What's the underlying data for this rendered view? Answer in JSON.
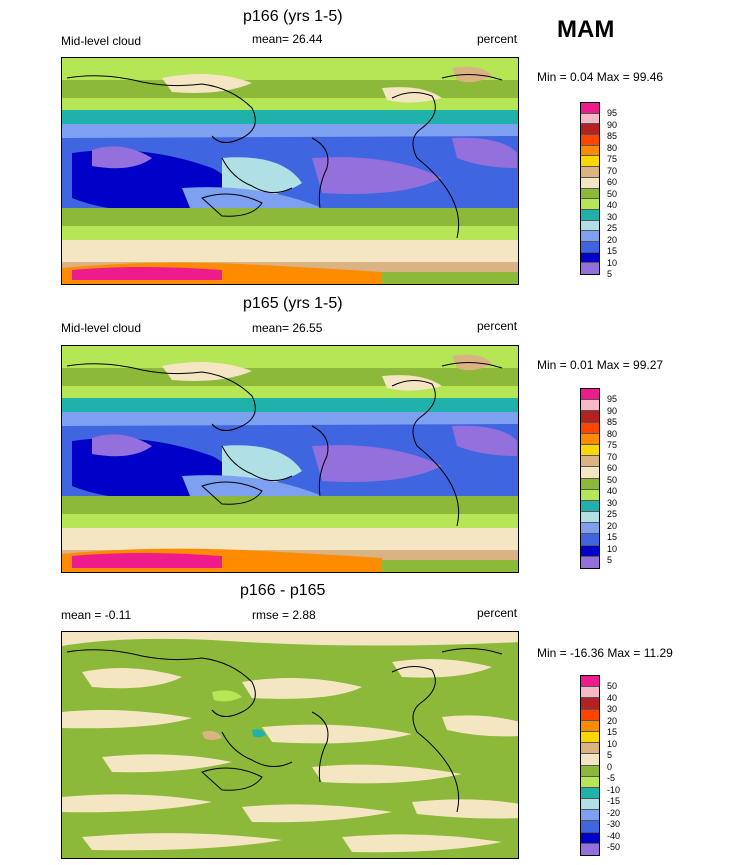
{
  "season": "MAM",
  "panels": [
    {
      "title": "p166 (yrs 1-5)",
      "left_label": "Mid-level cloud",
      "center_label": "mean=  26.44",
      "right_label": "percent",
      "minmax": "Min =   0.04 Max =   99.46",
      "colorbar_labels": [
        "95",
        "90",
        "85",
        "80",
        "75",
        "70",
        "60",
        "50",
        "40",
        "30",
        "25",
        "20",
        "15",
        "10",
        "5"
      ]
    },
    {
      "title": "p165 (yrs 1-5)",
      "left_label": "Mid-level cloud",
      "center_label": "mean=  26.55",
      "right_label": "percent",
      "minmax": "Min =   0.01 Max =   99.27",
      "colorbar_labels": [
        "95",
        "90",
        "85",
        "80",
        "75",
        "70",
        "60",
        "50",
        "40",
        "30",
        "25",
        "20",
        "15",
        "10",
        "5"
      ]
    },
    {
      "title": "p166 - p165",
      "left_label": "mean =  -0.11",
      "center_label": "rmse =   2.88",
      "right_label": "percent",
      "minmax": "Min = -16.36 Max =   11.29",
      "colorbar_labels": [
        "50",
        "40",
        "30",
        "20",
        "15",
        "10",
        "5",
        "0",
        "-5",
        "-10",
        "-15",
        "-20",
        "-30",
        "-40",
        "-50"
      ]
    }
  ],
  "colors": {
    "cloud_scale": [
      "#ee1b8d",
      "#f5b8c6",
      "#b22222",
      "#ff4500",
      "#ff8c00",
      "#ffd700",
      "#d9b382",
      "#f5e6c3",
      "#8db93b",
      "#b5e655",
      "#20b2aa",
      "#b0e0e6",
      "#7da0f0",
      "#3f66e0",
      "#0000c8",
      "#9370db"
    ],
    "diff_scale": [
      "#ee1b8d",
      "#f5b8c6",
      "#b22222",
      "#ff4500",
      "#ff8c00",
      "#ffd700",
      "#d9b382",
      "#f5e6c3",
      "#8db93b",
      "#b5e655",
      "#20b2aa",
      "#b0e0e6",
      "#7da0f0",
      "#3f66e0",
      "#0000c8",
      "#9370db"
    ]
  }
}
